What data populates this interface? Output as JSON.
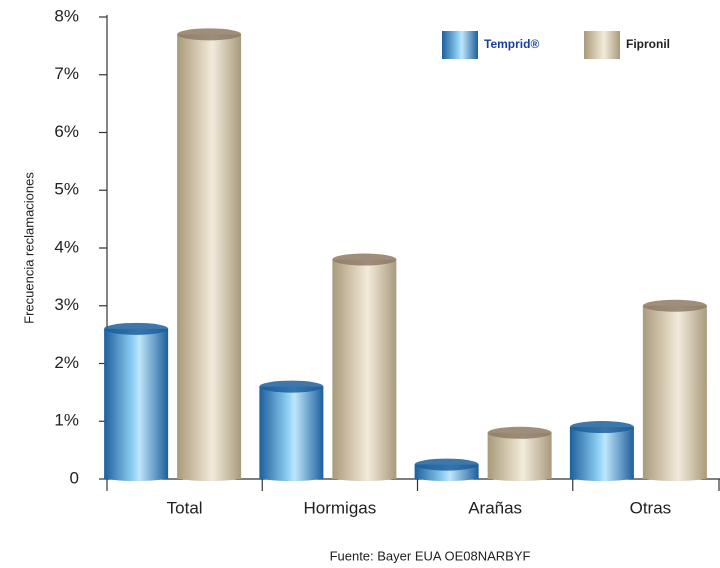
{
  "chart_data": {
    "type": "bar",
    "y_label": "Frecuencia reclamaciones",
    "source": "Fuente: Bayer EUA OE08NARBYF",
    "categories": [
      "Total",
      "Hormigas",
      "Arañas",
      "Otras"
    ],
    "series": [
      {
        "name": "Temprid®",
        "color": "#2f86c8",
        "values": [
          2.6,
          1.6,
          0.25,
          0.9
        ]
      },
      {
        "name": "Fipronil",
        "color": "#c8bb9f",
        "values": [
          7.7,
          3.8,
          0.8,
          3.0
        ]
      }
    ],
    "ylim": [
      0,
      8
    ],
    "yticks": [
      0,
      {
        "value": 1,
        "label": "1%"
      },
      {
        "value": 2,
        "label": "2%"
      },
      {
        "value": 3,
        "label": "3%"
      },
      {
        "value": 4,
        "label": "4%"
      },
      {
        "value": 5,
        "label": "5%"
      },
      {
        "value": 6,
        "label": "6%"
      },
      {
        "value": 7,
        "label": "7%"
      },
      {
        "value": 8,
        "label": "8%"
      }
    ],
    "legend": "top-right"
  }
}
